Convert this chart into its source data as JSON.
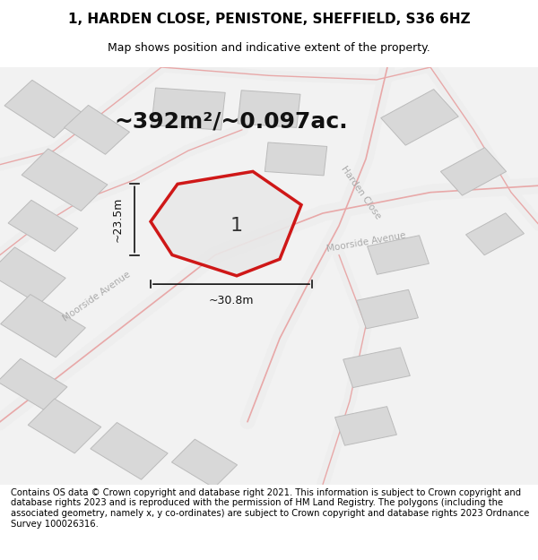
{
  "title": "1, HARDEN CLOSE, PENISTONE, SHEFFIELD, S36 6HZ",
  "subtitle": "Map shows position and indicative extent of the property.",
  "area_label": "~392m²/~0.097ac.",
  "plot_number": "1",
  "width_label": "~30.8m",
  "height_label": "~23.5m",
  "footer": "Contains OS data © Crown copyright and database right 2021. This information is subject to Crown copyright and database rights 2023 and is reproduced with the permission of HM Land Registry. The polygons (including the associated geometry, namely x, y co-ordinates) are subject to Crown copyright and database rights 2023 Ordnance Survey 100026316.",
  "bg_color": "#f5f5f5",
  "map_bg": "#f0f0f0",
  "road_color": "#e8a8a8",
  "building_color": "#d8d8d8",
  "building_edge": "#bbbbbb",
  "plot_color": "#e8e8e8",
  "plot_edge_color": "#cc0000",
  "dim_line_color": "#111111",
  "street_label_color": "#aaaaaa",
  "title_fontsize": 11,
  "subtitle_fontsize": 9,
  "area_fontsize": 18,
  "footer_fontsize": 7.2
}
